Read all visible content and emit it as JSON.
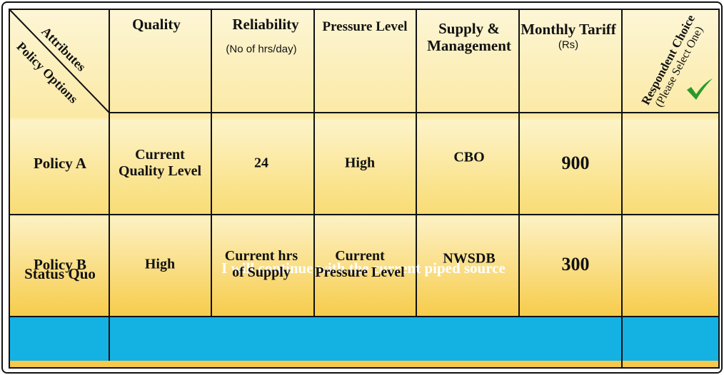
{
  "header": {
    "corner_top": "Attributes",
    "corner_bottom": "Policy Options",
    "columns": [
      {
        "title": "Quality"
      },
      {
        "title": "Reliability",
        "subtitle": "(No of hrs/day)"
      },
      {
        "title": "Pressure Level"
      },
      {
        "title": "Supply & Management"
      },
      {
        "title": "Monthly Tariff",
        "subtitle": "(Rs)"
      }
    ],
    "choice_title": "Respondent Choice",
    "choice_subtitle": "(Please Select One)"
  },
  "table": {
    "rows": [
      {
        "label": "Policy A",
        "cells": [
          [
            "Current",
            "Quality Level"
          ],
          [
            "24"
          ],
          [
            "High"
          ],
          [
            "CBO"
          ],
          [
            "900"
          ]
        ]
      },
      {
        "label": "Policy B",
        "cells": [
          [
            "High"
          ],
          [
            "Current hrs",
            "of  Supply"
          ],
          [
            "Current",
            "Pressure Level"
          ],
          [
            "NWSDB"
          ],
          [
            "300"
          ]
        ]
      }
    ]
  },
  "status_quo": {
    "label": "Status Quo",
    "text": "I will  continue with the current piped source"
  }
}
